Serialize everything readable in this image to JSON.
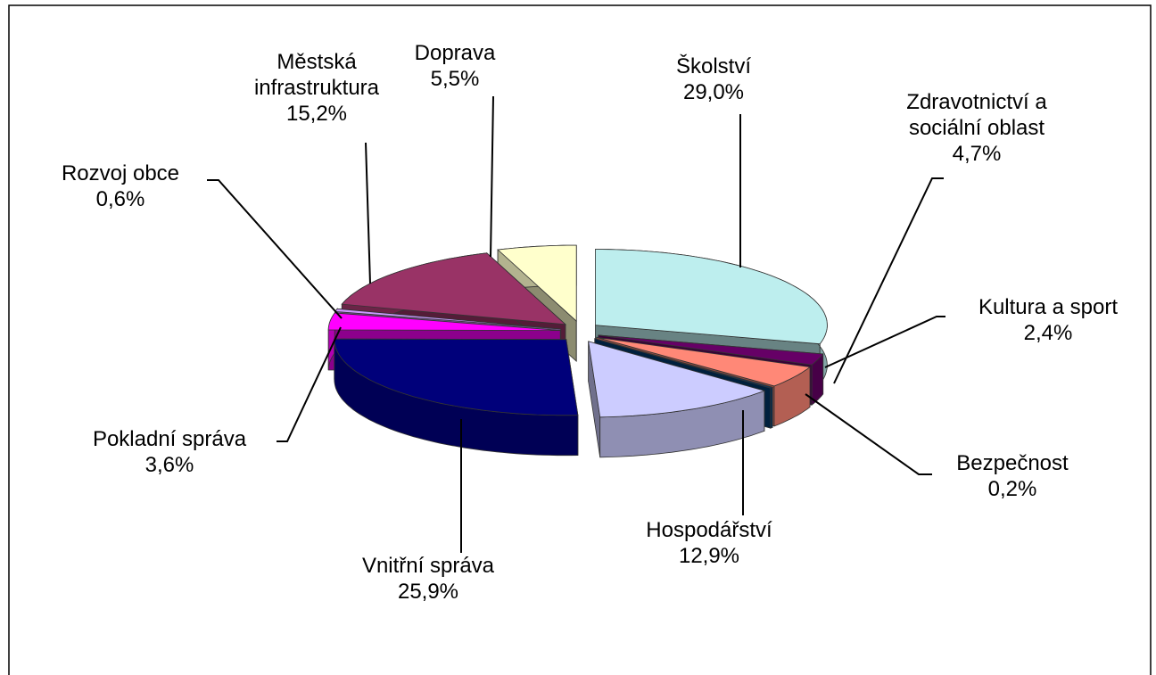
{
  "chart_data": {
    "type": "pie3d",
    "categories": [
      "Školství",
      "Kultura a sport",
      "Zdravotnictví a sociální oblast",
      "Bezpečnost",
      "Hospodářství",
      "Vnitřní správa",
      "Pokladní správa",
      "Rozvoj obce",
      "Městská infrastruktura",
      "Doprava"
    ],
    "values": [
      29.0,
      2.4,
      4.7,
      0.2,
      12.9,
      25.9,
      3.6,
      0.6,
      15.2,
      5.5
    ],
    "value_labels": [
      "29,0%",
      "2,4%",
      "4,7%",
      "0,2%",
      "12,9%",
      "25,9%",
      "3,6%",
      "0,6%",
      "15,2%",
      "5,5%"
    ],
    "colors": [
      "#bdeeee",
      "#660066",
      "#ff8877",
      "#003a6e",
      "#ccccff",
      "#00007a",
      "#ff00ff",
      "#cc99ff",
      "#993366",
      "#ffffcc"
    ]
  }
}
